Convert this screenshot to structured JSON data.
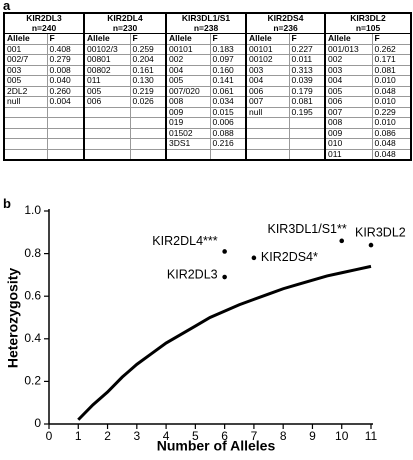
{
  "panel_a": "a",
  "panel_b": "b",
  "table": {
    "groups": [
      {
        "name": "KIR2DL3",
        "n": "n=240",
        "columns": [
          "Allele",
          "F"
        ],
        "rows": [
          [
            "001",
            "0.408"
          ],
          [
            "002/7",
            "0.279"
          ],
          [
            "003",
            "0.008"
          ],
          [
            "005",
            "0.040"
          ],
          [
            "2DL2",
            "0.260"
          ],
          [
            "null",
            "0.004"
          ]
        ]
      },
      {
        "name": "KIR2DL4",
        "n": "n=230",
        "columns": [
          "Allele",
          "F"
        ],
        "rows": [
          [
            "00102/3",
            "0.259"
          ],
          [
            "00801",
            "0.204"
          ],
          [
            "00802",
            "0.161"
          ],
          [
            "011",
            "0.130"
          ],
          [
            "005",
            "0.219"
          ],
          [
            "006",
            "0.026"
          ]
        ]
      },
      {
        "name": "KIR3DL1/S1",
        "n": "n=238",
        "columns": [
          "Allele",
          "F"
        ],
        "rows": [
          [
            "00101",
            "0.183"
          ],
          [
            "002",
            "0.097"
          ],
          [
            "004",
            "0.160"
          ],
          [
            "005",
            "0.141"
          ],
          [
            "007/020",
            "0.061"
          ],
          [
            "008",
            "0.034"
          ],
          [
            "009",
            "0.015"
          ],
          [
            "019",
            "0.006"
          ],
          [
            "01502",
            "0.088"
          ],
          [
            "3DS1",
            "0.216"
          ]
        ]
      },
      {
        "name": "KIR2DS4",
        "n": "n=236",
        "columns": [
          "Allele",
          "F"
        ],
        "rows": [
          [
            "00101",
            "0.227"
          ],
          [
            "00102",
            "0.011"
          ],
          [
            "003",
            "0.313"
          ],
          [
            "004",
            "0.039"
          ],
          [
            "006",
            "0.179"
          ],
          [
            "007",
            "0.081"
          ],
          [
            "null",
            "0.195"
          ]
        ]
      },
      {
        "name": "KIR3DL2",
        "n": "n=105",
        "columns": [
          "Allele",
          "F"
        ],
        "rows": [
          [
            "001/013",
            "0.262"
          ],
          [
            "002",
            "0.171"
          ],
          [
            "003",
            "0.081"
          ],
          [
            "004",
            "0.010"
          ],
          [
            "005",
            "0.048"
          ],
          [
            "006",
            "0.010"
          ],
          [
            "007",
            "0.229"
          ],
          [
            "008",
            "0.010"
          ],
          [
            "009",
            "0.086"
          ],
          [
            "010",
            "0.048"
          ],
          [
            "011",
            "0.048"
          ]
        ]
      }
    ]
  },
  "chart_data": {
    "type": "scatter",
    "x_label": "Number of Alleles",
    "y_label": "Heterozygosity",
    "labels": [
      "KIR2DL3",
      "KIR2DL4***",
      "KIR2DS4*",
      "KIR3DL1/S1**",
      "KIR3DL2"
    ],
    "x": [
      6,
      6,
      7,
      10,
      11
    ],
    "values": [
      0.69,
      0.81,
      0.78,
      0.86,
      0.84
    ],
    "color": "#000000",
    "line": {
      "x": [
        1,
        1.5,
        2,
        2.5,
        3,
        3.5,
        4,
        4.5,
        5,
        5.5,
        6,
        6.5,
        7,
        7.5,
        8,
        8.5,
        9,
        9.5,
        10,
        10.5,
        11
      ],
      "values": [
        0.02,
        0.09,
        0.15,
        0.22,
        0.28,
        0.33,
        0.38,
        0.42,
        0.46,
        0.5,
        0.53,
        0.56,
        0.585,
        0.61,
        0.635,
        0.655,
        0.675,
        0.695,
        0.71,
        0.725,
        0.74
      ]
    },
    "xlim": [
      0,
      11
    ],
    "xticks": [
      0,
      1,
      2,
      3,
      4,
      5,
      6,
      7,
      8,
      9,
      10,
      11
    ],
    "ylim": [
      0,
      1
    ],
    "yticks": [
      0,
      0.2,
      0.4,
      0.6,
      0.8,
      {
        "value": 1,
        "label": "1.0"
      }
    ]
  }
}
